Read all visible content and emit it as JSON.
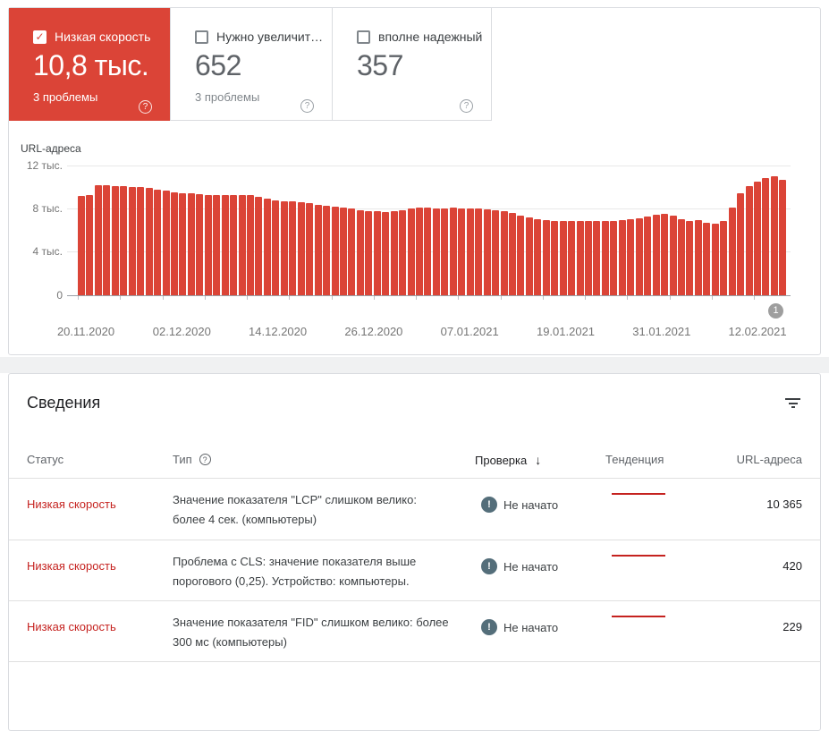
{
  "cards": [
    {
      "label": "Низкая скорость",
      "value": "10,8 тыс.",
      "sub": "3 проблемы",
      "checked": true
    },
    {
      "label": "Нужно увеличит…",
      "value": "652",
      "sub": "3 проблемы",
      "checked": false
    },
    {
      "label": "вполне надежный",
      "value": "357",
      "sub": "",
      "checked": false
    }
  ],
  "icons": {
    "help": "?",
    "warning": "!",
    "sort_desc": "↓"
  },
  "chart_data": {
    "type": "bar",
    "ylabel": "URL-адреса",
    "y_ticks": [
      "12 тыс.",
      "8 тыс.",
      "4 тыс.",
      "0"
    ],
    "ylim": [
      0,
      12000
    ],
    "grid": true,
    "bar_color": "#db4437",
    "badge": "1",
    "x_labels": [
      "20.11.2020",
      "02.12.2020",
      "14.12.2020",
      "26.12.2020",
      "07.01.2021",
      "19.01.2021",
      "31.01.2021",
      "12.02.2021"
    ],
    "values": [
      9200,
      9250,
      10200,
      10150,
      10100,
      10100,
      10050,
      10000,
      9950,
      9800,
      9650,
      9550,
      9450,
      9400,
      9350,
      9300,
      9300,
      9250,
      9300,
      9300,
      9250,
      9100,
      8900,
      8750,
      8650,
      8650,
      8600,
      8500,
      8350,
      8250,
      8200,
      8150,
      8000,
      7900,
      7800,
      7750,
      7700,
      7750,
      7850,
      8000,
      8100,
      8100,
      8050,
      8050,
      8100,
      8050,
      8000,
      8000,
      7950,
      7900,
      7750,
      7600,
      7400,
      7200,
      7050,
      6950,
      6900,
      6900,
      6850,
      6900,
      6900,
      6850,
      6900,
      6900,
      6950,
      7050,
      7150,
      7300,
      7450,
      7500,
      7350,
      7000,
      6850,
      6950,
      6700,
      6650,
      6900,
      8100,
      9450,
      10100,
      10550,
      10850,
      11000,
      10700
    ]
  },
  "details": {
    "title": "Сведения",
    "columns": {
      "status": "Статус",
      "type": "Тип",
      "validation": "Проверка",
      "trend": "Тенденция",
      "urls": "URL-адреса"
    },
    "rows": [
      {
        "status": "Низкая скорость",
        "type": "Значение показателя \"LCP\" слишком велико: более 4 сек. (компьютеры)",
        "validation": "Не начато",
        "urls": "10 365"
      },
      {
        "status": "Низкая скорость",
        "type": "Проблема с CLS: значение показателя выше порогового (0,25). Устройство: компьютеры.",
        "validation": "Не начато",
        "urls": "420"
      },
      {
        "status": "Низкая скорость",
        "type": "Значение показателя \"FID\" слишком велико: более 300 мс (компьютеры)",
        "validation": "Не начато",
        "urls": "229"
      }
    ]
  },
  "colors": {
    "accent_red": "#db4437",
    "status_text_red": "#c5221f",
    "not_started_circle": "#546e7a",
    "badge_gray": "#9e9e9e",
    "panel_border": "#dadce0"
  }
}
